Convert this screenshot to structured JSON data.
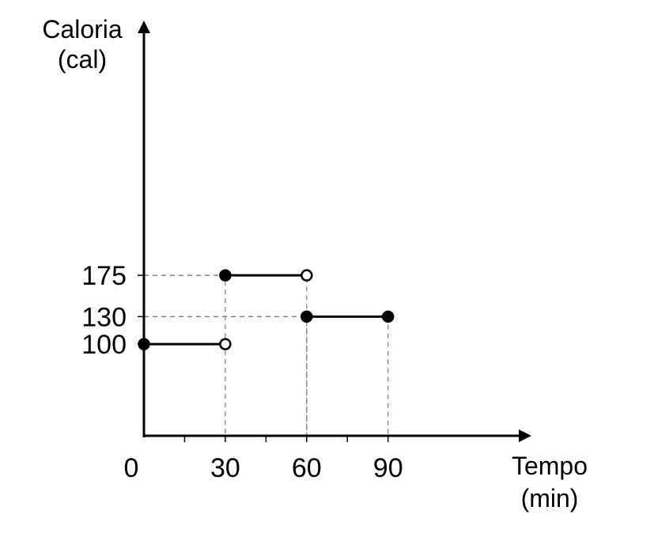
{
  "chart_data": {
    "type": "line",
    "ylabel_line1": "Caloria",
    "ylabel_line2": "(cal)",
    "xlabel_line1": "Tempo",
    "xlabel_line2": "(min)",
    "x_ticks": [
      "0",
      "30",
      "60",
      "90"
    ],
    "y_ticks": [
      "100",
      "130",
      "175"
    ],
    "xlim": [
      0,
      140
    ],
    "ylim": [
      0,
      310
    ],
    "minor_x_ticks": [
      15,
      45,
      75
    ],
    "grid": "dashed guides only",
    "segments": [
      {
        "x": [
          0,
          30
        ],
        "y": 100,
        "start_closed": true,
        "end_closed": false
      },
      {
        "x": [
          30,
          60
        ],
        "y": 175,
        "start_closed": true,
        "end_closed": false
      },
      {
        "x": [
          60,
          90
        ],
        "y": 130,
        "start_closed": true,
        "end_closed": true
      }
    ],
    "guides": [
      {
        "x": 30,
        "y": 175
      },
      {
        "x": 60,
        "y": 175
      },
      {
        "x": 60,
        "y": 130
      },
      {
        "x": 90,
        "y": 130
      }
    ]
  }
}
